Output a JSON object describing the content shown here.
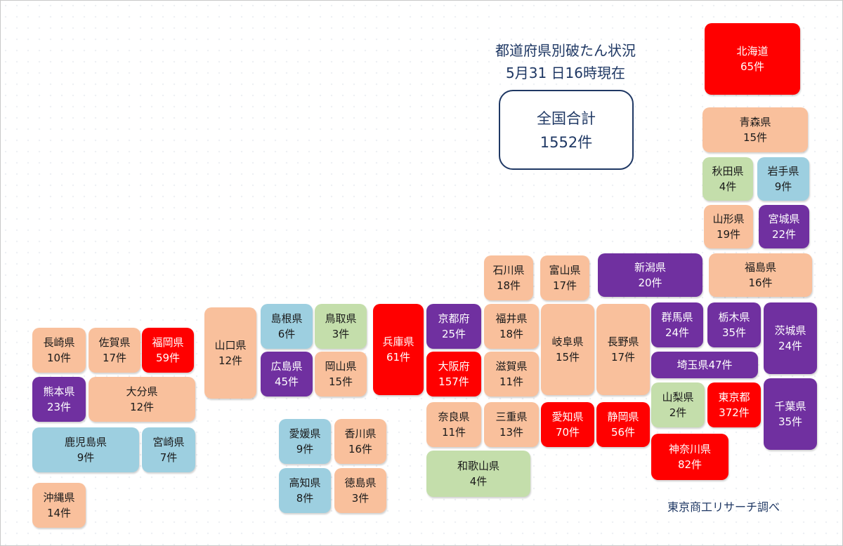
{
  "title": "都道府県別破たん状況",
  "date": "5月31 日16時現在",
  "total": {
    "label": "全国合計",
    "count": "1552件"
  },
  "source": "東京商工リサーチ調べ",
  "colors": {
    "orange": "#f9c09c",
    "red": "#ff0000",
    "purple": "#7030a0",
    "blue": "#9dcfe0",
    "green": "#c4deab",
    "title": "#1f3864"
  },
  "prefectures": [
    {
      "name": "北海道",
      "count": "65件",
      "color": "red"
    },
    {
      "name": "青森県",
      "count": "15件",
      "color": "orange"
    },
    {
      "name": "秋田県",
      "count": "4件",
      "color": "green"
    },
    {
      "name": "岩手県",
      "count": "9件",
      "color": "blue"
    },
    {
      "name": "山形県",
      "count": "19件",
      "color": "orange"
    },
    {
      "name": "宮城県",
      "count": "22件",
      "color": "purple"
    },
    {
      "name": "石川県",
      "count": "18件",
      "color": "orange"
    },
    {
      "name": "富山県",
      "count": "17件",
      "color": "orange"
    },
    {
      "name": "新潟県",
      "count": "20件",
      "color": "purple"
    },
    {
      "name": "福島県",
      "count": "16件",
      "color": "orange"
    },
    {
      "name": "島根県",
      "count": "6件",
      "color": "blue"
    },
    {
      "name": "鳥取県",
      "count": "3件",
      "color": "green"
    },
    {
      "name": "京都府",
      "count": "25件",
      "color": "purple"
    },
    {
      "name": "福井県",
      "count": "18件",
      "color": "orange"
    },
    {
      "name": "群馬県",
      "count": "24件",
      "color": "purple"
    },
    {
      "name": "栃木県",
      "count": "35件",
      "color": "purple"
    },
    {
      "name": "茨城県",
      "count": "24件",
      "color": "purple"
    },
    {
      "name": "長崎県",
      "count": "10件",
      "color": "orange"
    },
    {
      "name": "佐賀県",
      "count": "17件",
      "color": "orange"
    },
    {
      "name": "福岡県",
      "count": "59件",
      "color": "red"
    },
    {
      "name": "山口県",
      "count": "12件",
      "color": "orange"
    },
    {
      "name": "兵庫県",
      "count": "61件",
      "color": "red"
    },
    {
      "name": "岐阜県",
      "count": "15件",
      "color": "orange"
    },
    {
      "name": "長野県",
      "count": "17件",
      "color": "orange"
    },
    {
      "name": "広島県",
      "count": "45件",
      "color": "purple"
    },
    {
      "name": "岡山県",
      "count": "15件",
      "color": "orange"
    },
    {
      "name": "大阪府",
      "count": "157件",
      "color": "red"
    },
    {
      "name": "滋賀県",
      "count": "11件",
      "color": "orange"
    },
    {
      "name": "埼玉県",
      "count": "47件",
      "color": "purple"
    },
    {
      "name": "熊本県",
      "count": "23件",
      "color": "purple"
    },
    {
      "name": "大分県",
      "count": "12件",
      "color": "orange"
    },
    {
      "name": "山梨県",
      "count": "2件",
      "color": "green"
    },
    {
      "name": "東京都",
      "count": "372件",
      "color": "red"
    },
    {
      "name": "千葉県",
      "count": "35件",
      "color": "purple"
    },
    {
      "name": "奈良県",
      "count": "11件",
      "color": "orange"
    },
    {
      "name": "三重県",
      "count": "13件",
      "color": "orange"
    },
    {
      "name": "愛知県",
      "count": "70件",
      "color": "red"
    },
    {
      "name": "静岡県",
      "count": "56件",
      "color": "red"
    },
    {
      "name": "愛媛県",
      "count": "9件",
      "color": "blue"
    },
    {
      "name": "香川県",
      "count": "16件",
      "color": "orange"
    },
    {
      "name": "鹿児島県",
      "count": "9件",
      "color": "blue"
    },
    {
      "name": "宮崎県",
      "count": "7件",
      "color": "blue"
    },
    {
      "name": "神奈川県",
      "count": "82件",
      "color": "red"
    },
    {
      "name": "和歌山県",
      "count": "4件",
      "color": "green"
    },
    {
      "name": "高知県",
      "count": "8件",
      "color": "blue"
    },
    {
      "name": "徳島県",
      "count": "3件",
      "color": "orange"
    },
    {
      "name": "沖縄県",
      "count": "14件",
      "color": "orange"
    }
  ]
}
